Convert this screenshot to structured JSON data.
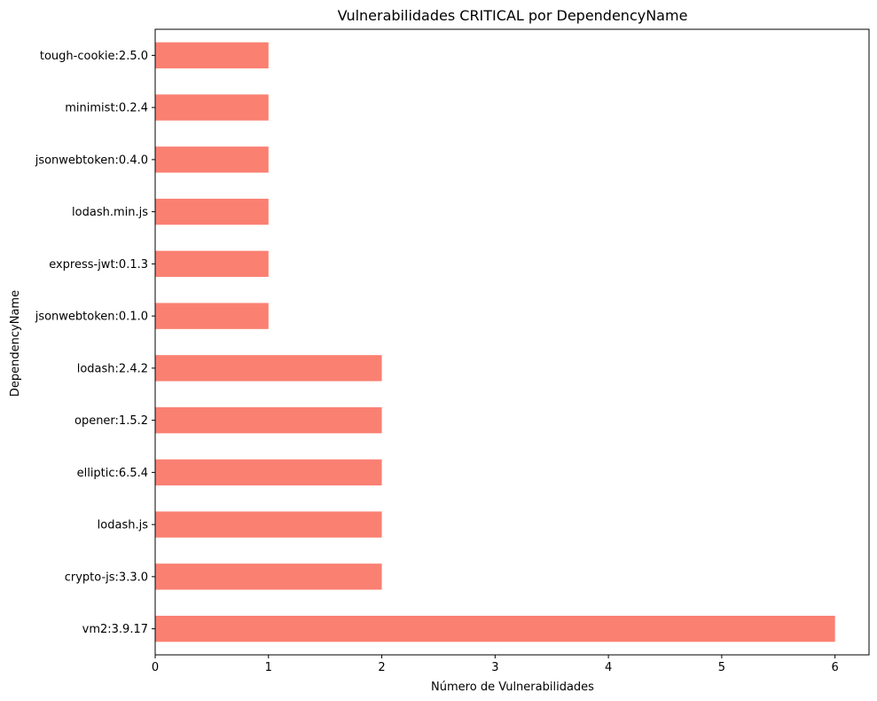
{
  "chart_data": {
    "type": "bar",
    "orientation": "horizontal",
    "title": "Vulnerabilidades CRITICAL por DependencyName",
    "xlabel": "Número de Vulnerabilidades",
    "ylabel": "DependencyName",
    "xlim": [
      0,
      6.3
    ],
    "xticks": [
      0,
      1,
      2,
      3,
      4,
      5,
      6
    ],
    "categories": [
      "vm2:3.9.17",
      "crypto-js:3.3.0",
      "lodash.js",
      "elliptic:6.5.4",
      "opener:1.5.2",
      "lodash:2.4.2",
      "jsonwebtoken:0.1.0",
      "express-jwt:0.1.3",
      "lodash.min.js",
      "jsonwebtoken:0.4.0",
      "minimist:0.2.4",
      "tough-cookie:2.5.0"
    ],
    "values": [
      6,
      2,
      2,
      2,
      2,
      2,
      1,
      1,
      1,
      1,
      1,
      1
    ],
    "bar_color": "#fa8072",
    "grid": false,
    "legend": "none"
  }
}
